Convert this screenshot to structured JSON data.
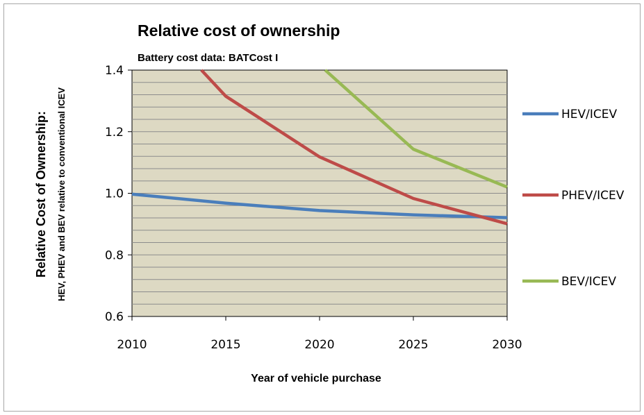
{
  "chart_data": {
    "type": "line",
    "title": "Relative cost of ownership",
    "subtitle": "Battery cost data: BATCost I",
    "xlabel": "Year of vehicle purchase",
    "ylabel": "Relative Cost of Ownership:",
    "ylabel2": "HEV, PHEV and BEV relative to conventional ICEV",
    "x": [
      2010,
      2015,
      2020,
      2025,
      2030
    ],
    "x_ticks": [
      "2010",
      "2015",
      "2020",
      "2025",
      "2030"
    ],
    "y_ticks": [
      "0.6",
      "0.8",
      "1.0",
      "1.2",
      "1.4"
    ],
    "xlim": [
      2010,
      2030
    ],
    "ylim": [
      0.6,
      1.4
    ],
    "grid": true,
    "legend_position": "right",
    "plot_background": "#ddd9c3",
    "series": [
      {
        "name": "HEV/ICEV",
        "color": "#4a7ebb",
        "points": [
          [
            2010,
            0.997
          ],
          [
            2015,
            0.968
          ],
          [
            2020,
            0.944
          ],
          [
            2025,
            0.93
          ],
          [
            2030,
            0.921
          ]
        ]
      },
      {
        "name": "PHEV/ICEV",
        "color": "#be4b48",
        "points": [
          [
            2013.7,
            1.4
          ],
          [
            2015,
            1.315
          ],
          [
            2020,
            1.118
          ],
          [
            2025,
            0.983
          ],
          [
            2030,
            0.901
          ]
        ]
      },
      {
        "name": "BEV/ICEV",
        "color": "#98b954",
        "points": [
          [
            2020.3,
            1.4
          ],
          [
            2025,
            1.143
          ],
          [
            2030,
            1.02
          ]
        ]
      }
    ]
  }
}
